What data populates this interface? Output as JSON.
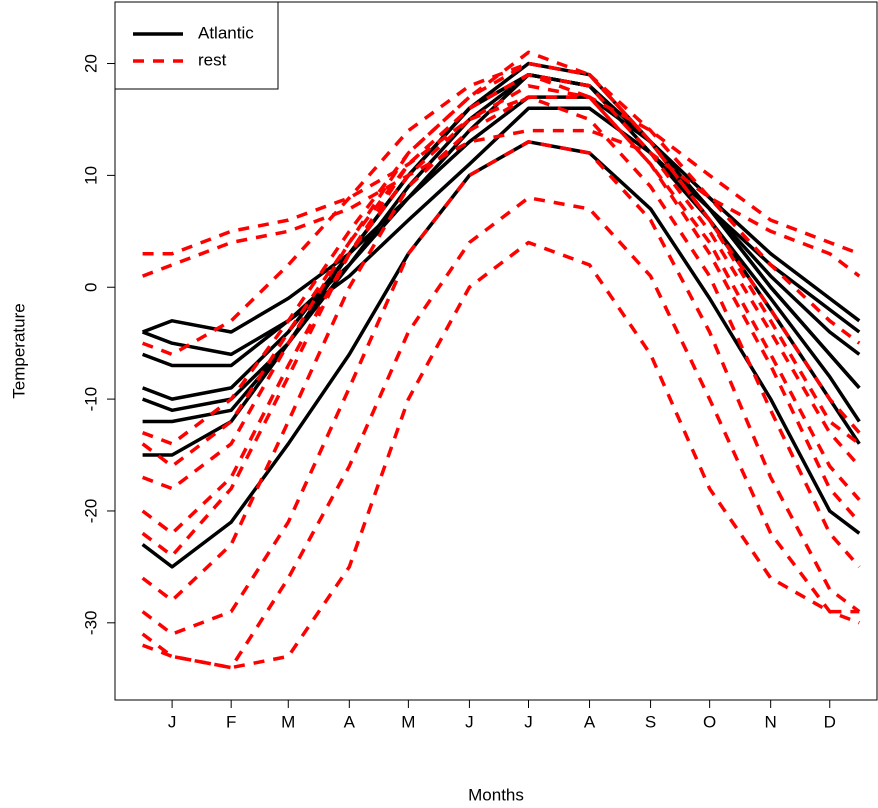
{
  "chart_data": {
    "type": "line",
    "xlabel": "Months",
    "ylabel": "Temperature",
    "x": [
      1,
      16,
      46,
      75,
      106,
      136,
      167,
      197,
      228,
      259,
      289,
      320,
      350,
      365
    ],
    "xlim": [
      -13,
      374
    ],
    "xticks": [
      {
        "value": 16,
        "label": "J"
      },
      {
        "value": 46,
        "label": "F"
      },
      {
        "value": 75,
        "label": "M"
      },
      {
        "value": 106,
        "label": "A"
      },
      {
        "value": 136,
        "label": "M"
      },
      {
        "value": 167,
        "label": "J"
      },
      {
        "value": 197,
        "label": "J"
      },
      {
        "value": 228,
        "label": "A"
      },
      {
        "value": 259,
        "label": "S"
      },
      {
        "value": 289,
        "label": "O"
      },
      {
        "value": 320,
        "label": "N"
      },
      {
        "value": 350,
        "label": "D"
      }
    ],
    "ylim": [
      -36.9,
      25.5
    ],
    "yticks": [
      -30,
      -20,
      -10,
      0,
      10,
      20
    ],
    "legend": "top-left",
    "series": [
      {
        "name": "Atlantic",
        "color": "#000000",
        "linestyle": "solid",
        "values": [
          -4,
          -5,
          -6,
          -3,
          1,
          6,
          11,
          16,
          16,
          12,
          7,
          2,
          -2,
          -4
        ]
      },
      {
        "name": "Atlantic",
        "color": "#000000",
        "linestyle": "solid",
        "values": [
          -6,
          -7,
          -7,
          -3,
          2,
          8,
          14,
          19,
          18,
          13,
          7,
          1,
          -4,
          -6
        ]
      },
      {
        "name": "Atlantic",
        "color": "#000000",
        "linestyle": "solid",
        "values": [
          -9,
          -10,
          -9,
          -4,
          3,
          10,
          16,
          20,
          19,
          13,
          7,
          0,
          -6,
          -9
        ]
      },
      {
        "name": "Atlantic",
        "color": "#000000",
        "linestyle": "solid",
        "values": [
          -12,
          -12,
          -11,
          -5,
          3,
          10,
          16,
          19,
          18,
          13,
          6,
          -1,
          -8,
          -12
        ]
      },
      {
        "name": "Atlantic",
        "color": "#000000",
        "linestyle": "solid",
        "values": [
          -15,
          -15,
          -12,
          -5,
          3,
          10,
          16,
          19,
          18,
          12,
          6,
          -2,
          -10,
          -14
        ]
      },
      {
        "name": "Atlantic",
        "color": "#000000",
        "linestyle": "solid",
        "values": [
          -4,
          -3,
          -4,
          -1,
          3,
          8,
          13,
          17,
          17,
          13,
          8,
          3,
          -1,
          -3
        ]
      },
      {
        "name": "Atlantic",
        "color": "#000000",
        "linestyle": "solid",
        "values": [
          -23,
          -25,
          -21,
          -14,
          -6,
          3,
          10,
          13,
          12,
          7,
          -1,
          -10,
          -20,
          -22
        ]
      },
      {
        "name": "Atlantic",
        "color": "#000000",
        "linestyle": "solid",
        "values": [
          -10,
          -11,
          -10,
          -5,
          2,
          9,
          15,
          19,
          18,
          13,
          7,
          0,
          -6,
          -9
        ]
      },
      {
        "name": "rest",
        "color": "#ff0000",
        "linestyle": "dashed",
        "values": [
          3,
          3,
          5,
          6,
          8,
          11,
          15,
          17,
          17,
          14,
          10,
          6,
          4,
          3
        ]
      },
      {
        "name": "rest",
        "color": "#ff0000",
        "linestyle": "dashed",
        "values": [
          1,
          2,
          4,
          5,
          7,
          10,
          13,
          14,
          14,
          12,
          8,
          5,
          3,
          1
        ]
      },
      {
        "name": "rest",
        "color": "#ff0000",
        "linestyle": "dashed",
        "values": [
          -5,
          -6,
          -3,
          2,
          8,
          14,
          18,
          20,
          19,
          14,
          8,
          2,
          -3,
          -5
        ]
      },
      {
        "name": "rest",
        "color": "#ff0000",
        "linestyle": "dashed",
        "values": [
          -13,
          -14,
          -10,
          -3,
          5,
          12,
          17,
          20,
          19,
          13,
          6,
          -2,
          -10,
          -13
        ]
      },
      {
        "name": "rest",
        "color": "#ff0000",
        "linestyle": "dashed",
        "values": [
          -17,
          -18,
          -14,
          -5,
          4,
          11,
          16,
          19,
          18,
          12,
          5,
          -4,
          -13,
          -16
        ]
      },
      {
        "name": "rest",
        "color": "#ff0000",
        "linestyle": "dashed",
        "values": [
          -22,
          -24,
          -18,
          -8,
          3,
          11,
          16,
          19,
          17,
          11,
          3,
          -7,
          -18,
          -21
        ]
      },
      {
        "name": "rest",
        "color": "#ff0000",
        "linestyle": "dashed",
        "values": [
          -26,
          -28,
          -23,
          -12,
          0,
          9,
          14,
          17,
          15,
          9,
          1,
          -11,
          -22,
          -25
        ]
      },
      {
        "name": "rest",
        "color": "#ff0000",
        "linestyle": "dashed",
        "values": [
          -29,
          -31,
          -29,
          -21,
          -9,
          3,
          10,
          13,
          12,
          6,
          -4,
          -17,
          -27,
          -29
        ]
      },
      {
        "name": "rest",
        "color": "#ff0000",
        "linestyle": "dashed",
        "values": [
          -32,
          -33,
          -34,
          -26,
          -16,
          -4,
          4,
          8,
          7,
          1,
          -10,
          -22,
          -29,
          -30
        ]
      },
      {
        "name": "rest",
        "color": "#ff0000",
        "linestyle": "dashed",
        "values": [
          -31,
          -33,
          -34,
          -33,
          -25,
          -10,
          0,
          4,
          2,
          -6,
          -18,
          -26,
          -29,
          -29
        ]
      },
      {
        "name": "rest",
        "color": "#ff0000",
        "linestyle": "dashed",
        "values": [
          -14,
          -16,
          -12,
          -4,
          4,
          12,
          17,
          21,
          19,
          13,
          6,
          -3,
          -12,
          -14
        ]
      },
      {
        "name": "rest",
        "color": "#ff0000",
        "linestyle": "dashed",
        "values": [
          -20,
          -22,
          -17,
          -7,
          3,
          10,
          15,
          18,
          17,
          11,
          4,
          -6,
          -16,
          -19
        ]
      }
    ]
  }
}
